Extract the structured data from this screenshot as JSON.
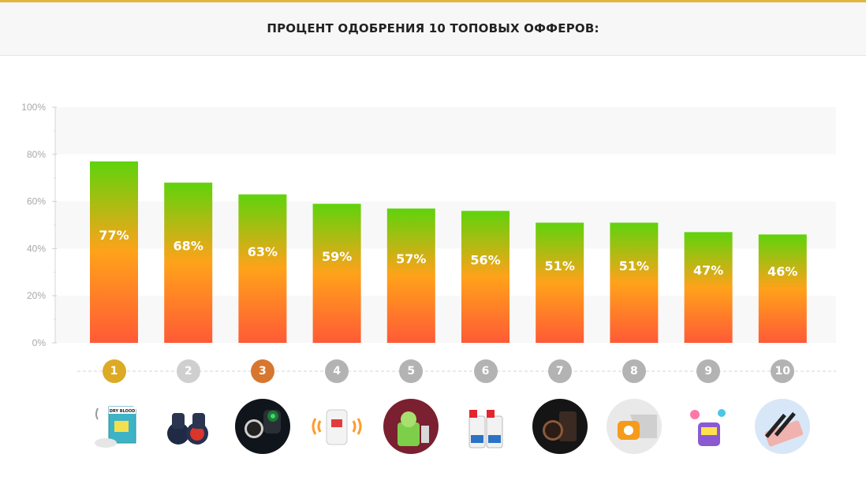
{
  "header": {
    "title": "ПРОЦЕНТ ОДОБРЕНИЯ 10 ТОПОВЫХ ОФФЕРОВ:"
  },
  "colors": {
    "bar_top": "#5fd30c",
    "bar_mid": "#ffa21a",
    "bar_bottom": "#ff5a36",
    "rank_gold": "#dcaa25",
    "rank_silver": "#cfcfcf",
    "rank_bronze": "#d7772f",
    "rank_default": "#b3b3b3"
  },
  "chart_data": {
    "type": "bar",
    "title": "ПРОЦЕНТ ОДОБРЕНИЯ 10 ТОПОВЫХ ОФФЕРОВ:",
    "categories": [
      "1",
      "2",
      "3",
      "4",
      "5",
      "6",
      "7",
      "8",
      "9",
      "10"
    ],
    "values": [
      77,
      68,
      63,
      59,
      57,
      56,
      51,
      51,
      47,
      46
    ],
    "value_labels": [
      "77%",
      "68%",
      "63%",
      "59%",
      "57%",
      "56%",
      "51%",
      "51%",
      "47%",
      "46%"
    ],
    "ylim": [
      0,
      100
    ],
    "yticks": [
      "0%",
      "20%",
      "40%",
      "60%",
      "80%",
      "100%"
    ],
    "grid": "alternating bands",
    "legend": "none"
  },
  "products": [
    {
      "rank": "1",
      "icon": "dry-blood-box-icon",
      "text": "DRY BLOOD"
    },
    {
      "rank": "2",
      "icon": "binoculars-icon"
    },
    {
      "rank": "3",
      "icon": "watch-binoculars-icon"
    },
    {
      "rank": "4",
      "icon": "repeller-plug-icon"
    },
    {
      "rank": "5",
      "icon": "vegetable-grater-icon"
    },
    {
      "rank": "6",
      "icon": "car-cleaner-bottles-icon"
    },
    {
      "rank": "7",
      "icon": "wallet-watch-icon"
    },
    {
      "rank": "8",
      "icon": "car-part-icon"
    },
    {
      "rank": "9",
      "icon": "bubble-toy-icon"
    },
    {
      "rank": "10",
      "icon": "eyebrow-pen-icon"
    }
  ]
}
